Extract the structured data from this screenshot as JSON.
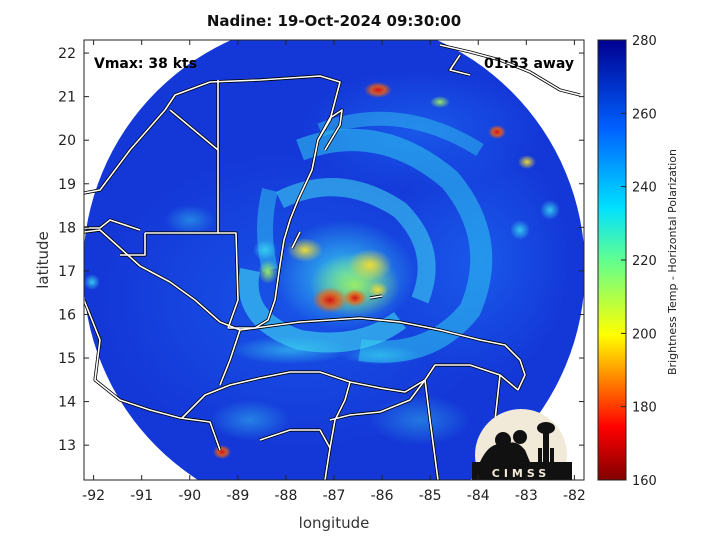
{
  "title": "Nadine: 19-Oct-2024 09:30:00",
  "vmax_label": "Vmax: 38 kts",
  "time_away": "01:53 away",
  "xlabel": "longitude",
  "ylabel": "latitude",
  "colorbar_label": "Brightness Temp - Horizontal Polarization",
  "logo_text": "CIMSS",
  "x_ticks": [
    "-92",
    "-91",
    "-90",
    "-89",
    "-88",
    "-87",
    "-86",
    "-85",
    "-84",
    "-83",
    "-82"
  ],
  "y_ticks": [
    "13",
    "14",
    "15",
    "16",
    "17",
    "18",
    "19",
    "20",
    "21",
    "22"
  ],
  "colorbar_ticks": [
    "280",
    "260",
    "240",
    "220",
    "200",
    "180",
    "160"
  ],
  "map": {
    "lon_range": [
      -92.2,
      -81.8
    ],
    "lat_range": [
      12.2,
      22.3
    ],
    "storm_center": {
      "lon": -86.8,
      "lat": 16.8
    },
    "colorbar_range": [
      160,
      280
    ]
  }
}
